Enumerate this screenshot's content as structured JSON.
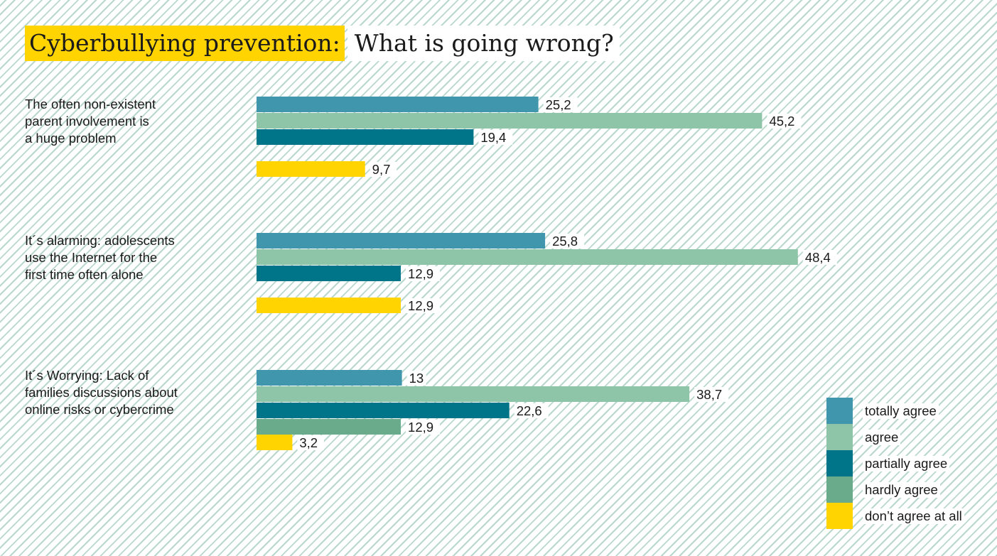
{
  "title": {
    "highlight": "Cyberbullying prevention:",
    "rest": "What is going wrong?"
  },
  "legend": [
    {
      "label": "totally agree",
      "color": "#3f96ad"
    },
    {
      "label": "agree",
      "color": "#8ec4a8"
    },
    {
      "label": "partially agree",
      "color": "#00758a"
    },
    {
      "label": "hardly agree",
      "color": "#6aab8c"
    },
    {
      "label": "don’t agree at all",
      "color": "#ffd400"
    }
  ],
  "chart_data": {
    "type": "bar",
    "orientation": "horizontal",
    "title": "Cyberbullying prevention: What is going wrong?",
    "categories": [
      {
        "label": "The often non-existent parent involvement is a huge problem",
        "lines": [
          "The often non-existent",
          "parent involvement is",
          "a huge problem"
        ]
      },
      {
        "label": "It´s alarming: adolescents use the Internet for the first time often alone",
        "lines": [
          "It´s alarming: adolescents",
          "use the Internet for the",
          "first time often alone"
        ]
      },
      {
        "label": "It´s Worrying: Lack of families discussions about online risks or cybercrime",
        "lines": [
          "It´s Worrying: Lack of",
          "families discussions about",
          "online risks or cybercrime"
        ]
      }
    ],
    "series": [
      {
        "name": "totally agree",
        "color": "#3f96ad",
        "values": [
          25.2,
          25.8,
          13
        ],
        "labels": [
          "25,2",
          "25,8",
          "13"
        ]
      },
      {
        "name": "agree",
        "color": "#8ec4a8",
        "values": [
          45.2,
          48.4,
          38.7
        ],
        "labels": [
          "45,2",
          "48,4",
          "38,7"
        ]
      },
      {
        "name": "partially agree",
        "color": "#00758a",
        "values": [
          19.4,
          12.9,
          22.6
        ],
        "labels": [
          "19,4",
          "12,9",
          "22,6"
        ]
      },
      {
        "name": "hardly agree",
        "color": "#6aab8c",
        "values": [
          null,
          null,
          12.9
        ],
        "labels": [
          "",
          "",
          "12,9"
        ]
      },
      {
        "name": "don’t agree at all",
        "color": "#ffd400",
        "values": [
          9.7,
          12.9,
          3.2
        ],
        "labels": [
          "9,7",
          "12,9",
          "3,2"
        ]
      }
    ],
    "xlim": [
      0,
      48.4
    ],
    "grid": false,
    "legend_position": "bottom-right"
  }
}
